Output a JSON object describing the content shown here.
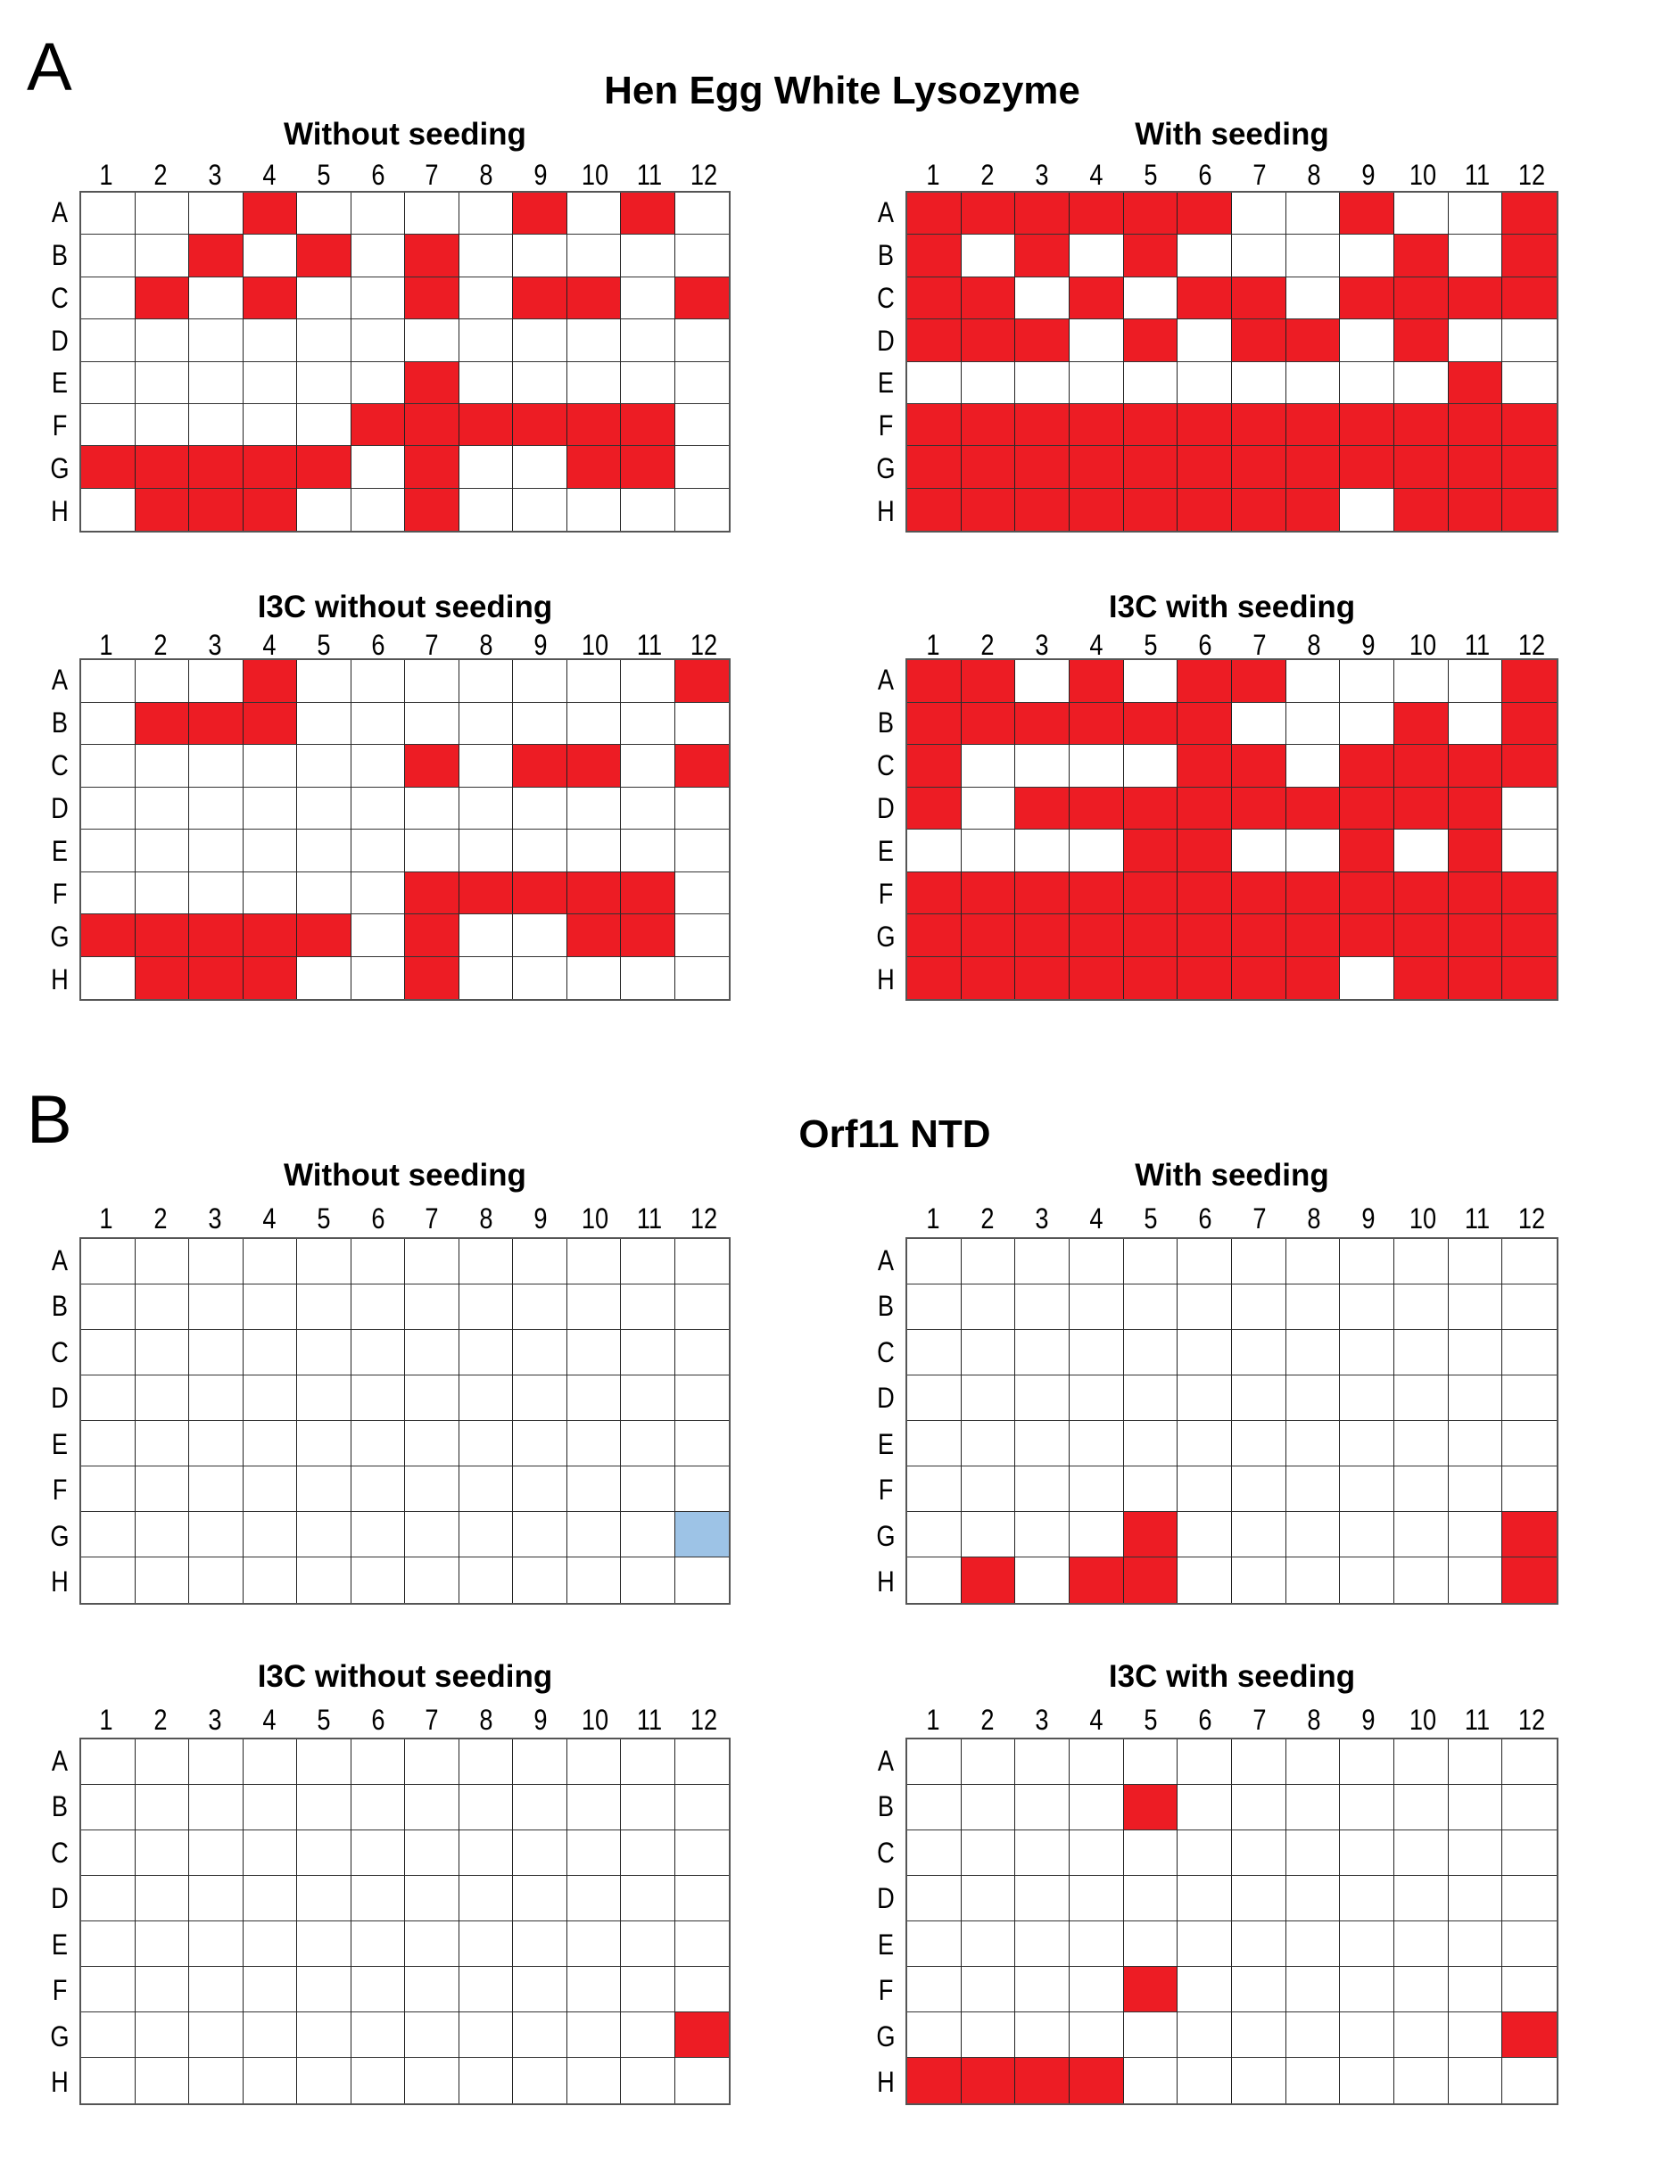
{
  "colors": {
    "hit": "#ed1c24",
    "highlight": "#9dc3e6",
    "empty": "#ffffff"
  },
  "chart_data": {
    "type": "heatmap",
    "rows": [
      "A",
      "B",
      "C",
      "D",
      "E",
      "F",
      "G",
      "H"
    ],
    "columns": [
      "1",
      "2",
      "3",
      "4",
      "5",
      "6",
      "7",
      "8",
      "9",
      "10",
      "11",
      "12"
    ],
    "sections": [
      {
        "letter": "A",
        "title": "Hen Egg White Lysozyme",
        "plates": [
          {
            "title": "Without seeding",
            "hits": {
              "A": [
                4,
                9,
                11
              ],
              "B": [
                3,
                5,
                7
              ],
              "C": [
                2,
                4,
                7,
                9,
                10,
                12
              ],
              "D": [],
              "E": [
                7
              ],
              "F": [
                6,
                7,
                8,
                9,
                10,
                11
              ],
              "G": [
                1,
                2,
                3,
                4,
                5,
                7,
                10,
                11
              ],
              "H": [
                2,
                3,
                4,
                7
              ]
            },
            "highlight": {}
          },
          {
            "title": "With seeding",
            "hits": {
              "A": [
                1,
                2,
                3,
                4,
                5,
                6,
                9,
                12
              ],
              "B": [
                1,
                3,
                5,
                10,
                12
              ],
              "C": [
                1,
                2,
                4,
                6,
                7,
                9,
                10,
                11,
                12
              ],
              "D": [
                1,
                2,
                3,
                5,
                7,
                8,
                10
              ],
              "E": [
                11
              ],
              "F": [
                1,
                2,
                3,
                4,
                5,
                6,
                7,
                8,
                9,
                10,
                11,
                12
              ],
              "G": [
                1,
                2,
                3,
                4,
                5,
                6,
                7,
                8,
                9,
                10,
                11,
                12
              ],
              "H": [
                1,
                2,
                3,
                4,
                5,
                6,
                7,
                8,
                10,
                11,
                12
              ]
            },
            "highlight": {}
          },
          {
            "title": "I3C without seeding",
            "hits": {
              "A": [
                4,
                12
              ],
              "B": [
                2,
                3,
                4
              ],
              "C": [
                7,
                9,
                10,
                12
              ],
              "D": [],
              "E": [],
              "F": [
                7,
                8,
                9,
                10,
                11
              ],
              "G": [
                1,
                2,
                3,
                4,
                5,
                7,
                10,
                11
              ],
              "H": [
                2,
                3,
                4,
                7
              ]
            },
            "highlight": {}
          },
          {
            "title": "I3C with seeding",
            "hits": {
              "A": [
                1,
                2,
                4,
                6,
                7,
                12
              ],
              "B": [
                1,
                2,
                3,
                4,
                5,
                6,
                10,
                12
              ],
              "C": [
                1,
                6,
                7,
                9,
                10,
                11,
                12
              ],
              "D": [
                1,
                3,
                4,
                5,
                6,
                7,
                8,
                9,
                10,
                11
              ],
              "E": [
                5,
                6,
                9,
                11
              ],
              "F": [
                1,
                2,
                3,
                4,
                5,
                6,
                7,
                8,
                9,
                10,
                11,
                12
              ],
              "G": [
                1,
                2,
                3,
                4,
                5,
                6,
                7,
                8,
                9,
                10,
                11,
                12
              ],
              "H": [
                1,
                2,
                3,
                4,
                5,
                6,
                7,
                8,
                10,
                11,
                12
              ]
            },
            "highlight": {}
          }
        ]
      },
      {
        "letter": "B",
        "title": "Orf11 NTD",
        "plates": [
          {
            "title": "Without seeding",
            "hits": {
              "A": [],
              "B": [],
              "C": [],
              "D": [],
              "E": [],
              "F": [],
              "G": [],
              "H": []
            },
            "highlight": {
              "G": [
                12
              ]
            }
          },
          {
            "title": "With seeding",
            "hits": {
              "A": [],
              "B": [],
              "C": [],
              "D": [],
              "E": [],
              "F": [],
              "G": [
                5,
                12
              ],
              "H": [
                2,
                4,
                5,
                12
              ]
            },
            "highlight": {}
          },
          {
            "title": "I3C without seeding",
            "hits": {
              "A": [],
              "B": [],
              "C": [],
              "D": [],
              "E": [],
              "F": [],
              "G": [
                12
              ],
              "H": []
            },
            "highlight": {}
          },
          {
            "title": "I3C with seeding",
            "hits": {
              "A": [],
              "B": [
                5
              ],
              "C": [],
              "D": [],
              "E": [],
              "F": [
                5
              ],
              "G": [
                12
              ],
              "H": [
                1,
                2,
                3,
                4
              ]
            },
            "highlight": {}
          }
        ]
      }
    ]
  }
}
